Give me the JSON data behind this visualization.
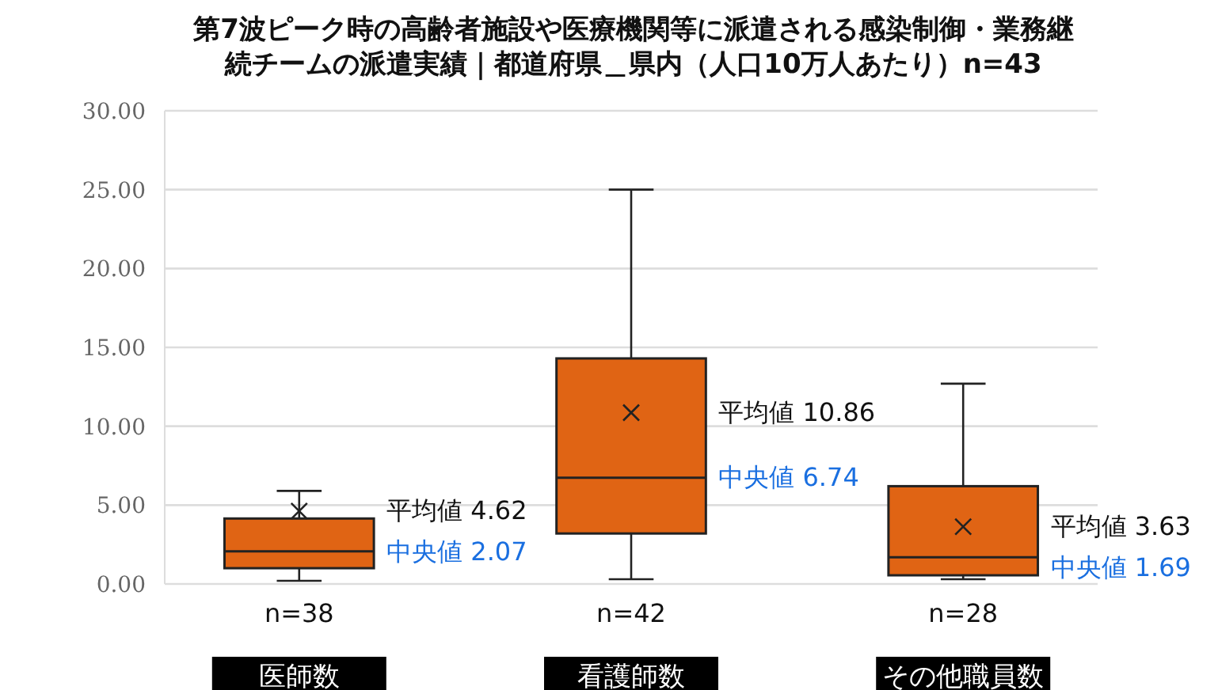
{
  "chart_data": {
    "type": "box",
    "title": "第7波ピーク時の高齢者施設や医療機関等に派遣される感染制御・業務継続チームの派遣実績｜都道府県＿県内（人口10万人あたり）n=43",
    "categories": [
      "医師数",
      "看護師数",
      "その他職員数"
    ],
    "boxes": [
      {
        "low": 0.2,
        "q1": 1.0,
        "median": 2.07,
        "q3": 4.15,
        "high": 5.9,
        "mean": 4.62
      },
      {
        "low": 0.3,
        "q1": 3.2,
        "median": 6.74,
        "q3": 14.3,
        "high": 25.0,
        "mean": 10.86
      },
      {
        "low": 0.3,
        "q1": 0.55,
        "median": 1.69,
        "q3": 6.2,
        "high": 12.7,
        "mean": 3.63
      }
    ],
    "color": "#e06414",
    "ylim": [
      0,
      30
    ],
    "yticks": [
      {
        "value": 0,
        "label": "0.00"
      },
      {
        "value": 5,
        "label": "5.00"
      },
      {
        "value": 10,
        "label": "10.00"
      },
      {
        "value": 15,
        "label": "15.00"
      },
      {
        "value": 20,
        "label": "20.00"
      },
      {
        "value": 25,
        "label": "25.00"
      },
      {
        "value": 30,
        "label": "30.00"
      }
    ],
    "grid": "y",
    "annotations": [
      "平均値 4.62",
      "中央値 2.07",
      "平均値 10.86",
      "中央値 6.74",
      "平均値 3.63",
      "中央値 1.69",
      "n=38",
      "n=42",
      "n=28"
    ]
  }
}
